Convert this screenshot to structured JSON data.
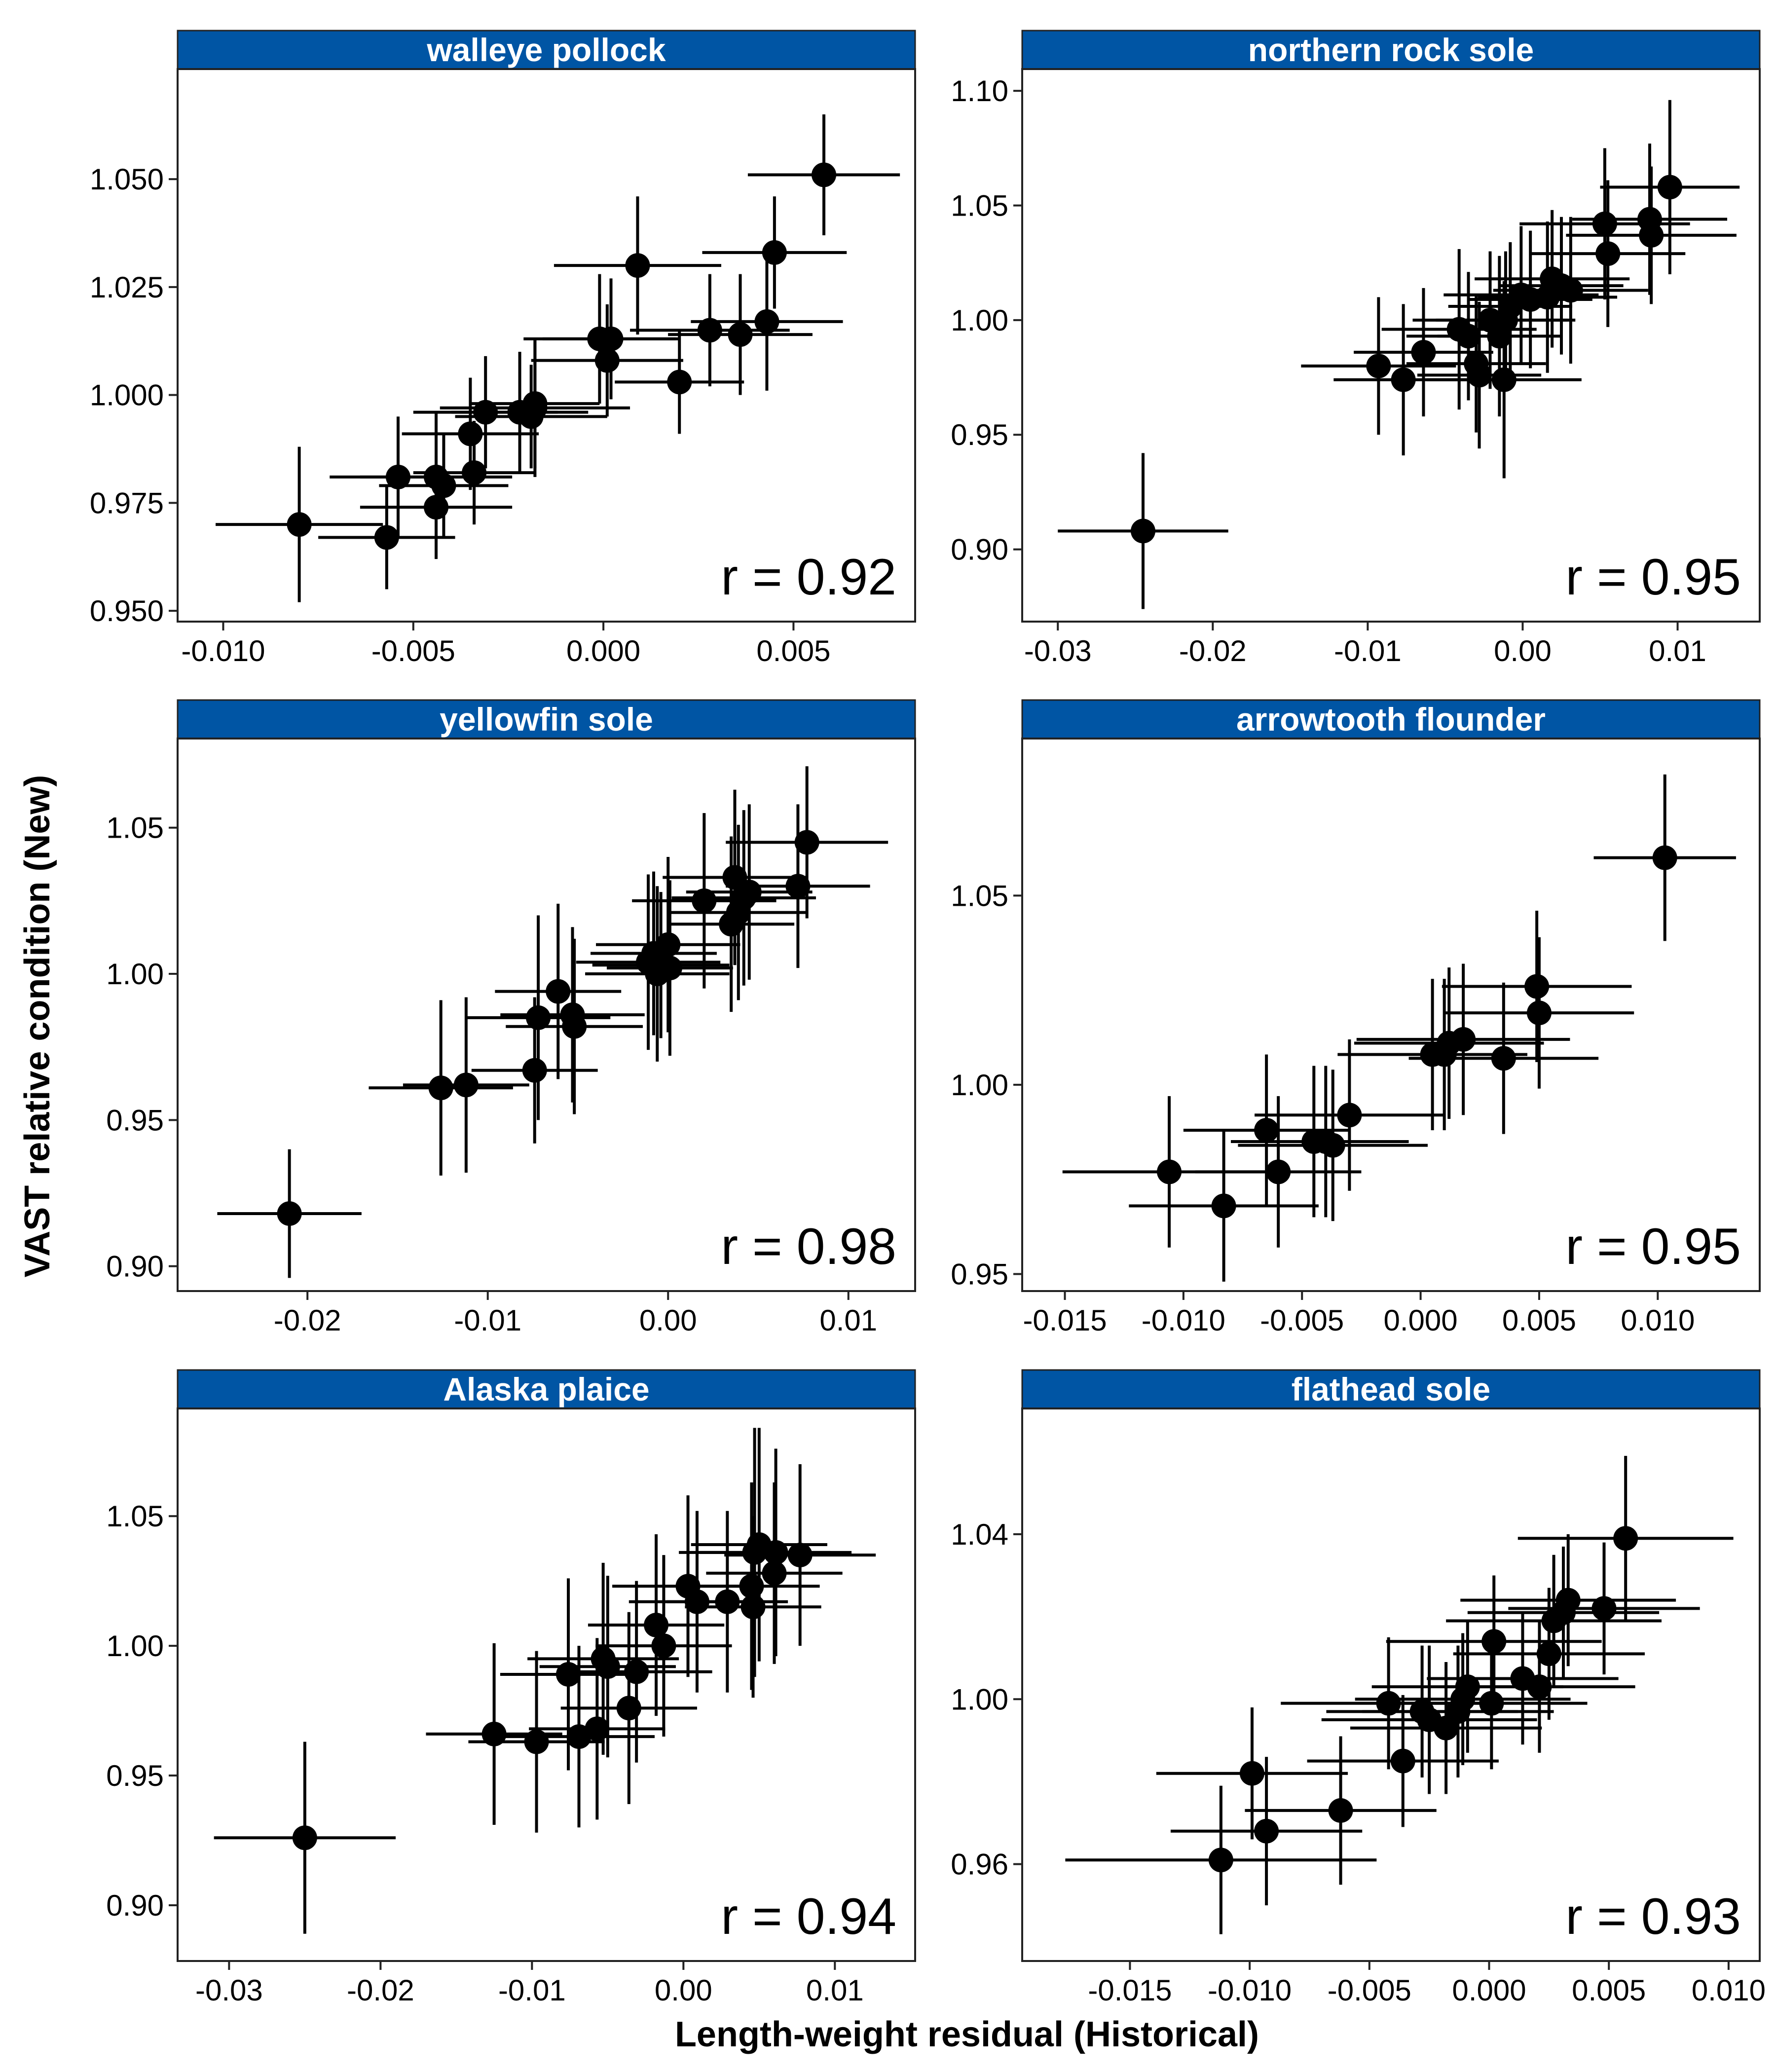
{
  "figure": {
    "xlabel": "Length-weight residual (Historical)",
    "ylabel": "VAST relative condition (New)",
    "strip_color": "#0055A4",
    "point_color": "#000000"
  },
  "chart_data": [
    {
      "type": "scatter",
      "title": "walleye pollock",
      "annotation": "r = 0.92",
      "xlim": [
        -0.0112,
        0.0082
      ],
      "ylim": [
        0.9475,
        1.0755
      ],
      "xticks": [
        -0.01,
        -0.005,
        0.0,
        0.005
      ],
      "xtick_labels": [
        "-0.010",
        "-0.005",
        "0.000",
        "0.005"
      ],
      "yticks": [
        0.95,
        0.975,
        1.0,
        1.025,
        1.05
      ],
      "ytick_labels": [
        "0.950",
        "0.975",
        "1.000",
        "1.025",
        "1.050"
      ],
      "points": [
        {
          "x": -0.008,
          "y": 0.97,
          "xerr": 0.0022,
          "yerr": 0.018
        },
        {
          "x": -0.0057,
          "y": 0.967,
          "xerr": 0.0018,
          "yerr": 0.012
        },
        {
          "x": -0.0054,
          "y": 0.981,
          "xerr": 0.0018,
          "yerr": 0.014
        },
        {
          "x": -0.0044,
          "y": 0.981,
          "xerr": 0.002,
          "yerr": 0.015
        },
        {
          "x": -0.0042,
          "y": 0.979,
          "xerr": 0.0017,
          "yerr": 0.012
        },
        {
          "x": -0.0044,
          "y": 0.974,
          "xerr": 0.002,
          "yerr": 0.012
        },
        {
          "x": -0.0035,
          "y": 0.991,
          "xerr": 0.0018,
          "yerr": 0.013
        },
        {
          "x": -0.0034,
          "y": 0.982,
          "xerr": 0.0016,
          "yerr": 0.012
        },
        {
          "x": -0.0031,
          "y": 0.996,
          "xerr": 0.0019,
          "yerr": 0.013
        },
        {
          "x": -0.0022,
          "y": 0.996,
          "xerr": 0.0018,
          "yerr": 0.014
        },
        {
          "x": -0.0019,
          "y": 0.995,
          "xerr": 0.002,
          "yerr": 0.012
        },
        {
          "x": -0.0018,
          "y": 0.997,
          "xerr": 0.0025,
          "yerr": 0.016
        },
        {
          "x": -0.0018,
          "y": 0.998,
          "xerr": 0.0017,
          "yerr": 0.015
        },
        {
          "x": -0.0001,
          "y": 1.013,
          "xerr": 0.002,
          "yerr": 0.015
        },
        {
          "x": 0.0001,
          "y": 1.008,
          "xerr": 0.002,
          "yerr": 0.013
        },
        {
          "x": 0.0002,
          "y": 1.013,
          "xerr": 0.0018,
          "yerr": 0.014
        },
        {
          "x": 0.0009,
          "y": 1.03,
          "xerr": 0.0022,
          "yerr": 0.016
        },
        {
          "x": 0.002,
          "y": 1.003,
          "xerr": 0.0017,
          "yerr": 0.012
        },
        {
          "x": 0.0028,
          "y": 1.015,
          "xerr": 0.0021,
          "yerr": 0.013
        },
        {
          "x": 0.0036,
          "y": 1.014,
          "xerr": 0.0019,
          "yerr": 0.014
        },
        {
          "x": 0.0043,
          "y": 1.017,
          "xerr": 0.002,
          "yerr": 0.016
        },
        {
          "x": 0.0045,
          "y": 1.033,
          "xerr": 0.0019,
          "yerr": 0.013
        },
        {
          "x": 0.0058,
          "y": 1.051,
          "xerr": 0.002,
          "yerr": 0.014
        }
      ]
    },
    {
      "type": "scatter",
      "title": "northern rock sole",
      "annotation": "r = 0.95",
      "xlim": [
        -0.0323,
        0.0153
      ],
      "ylim": [
        0.8685,
        1.1095
      ],
      "xticks": [
        -0.03,
        -0.02,
        -0.01,
        0.0,
        0.01
      ],
      "xtick_labels": [
        "-0.03",
        "-0.02",
        "-0.01",
        "0.00",
        "0.01"
      ],
      "yticks": [
        0.9,
        0.95,
        1.0,
        1.05,
        1.1
      ],
      "ytick_labels": [
        "0.90",
        "0.95",
        "1.00",
        "1.05",
        "1.10"
      ],
      "points": [
        {
          "x": -0.0245,
          "y": 0.908,
          "xerr": 0.0055,
          "yerr": 0.034
        },
        {
          "x": -0.0093,
          "y": 0.98,
          "xerr": 0.005,
          "yerr": 0.03
        },
        {
          "x": -0.0077,
          "y": 0.974,
          "xerr": 0.0045,
          "yerr": 0.033
        },
        {
          "x": -0.0064,
          "y": 0.986,
          "xerr": 0.0045,
          "yerr": 0.028
        },
        {
          "x": -0.0041,
          "y": 0.996,
          "xerr": 0.005,
          "yerr": 0.035
        },
        {
          "x": -0.0035,
          "y": 0.993,
          "xerr": 0.004,
          "yerr": 0.028
        },
        {
          "x": -0.003,
          "y": 0.981,
          "xerr": 0.0045,
          "yerr": 0.03
        },
        {
          "x": -0.0028,
          "y": 0.976,
          "xerr": 0.004,
          "yerr": 0.032
        },
        {
          "x": -0.0021,
          "y": 1.0,
          "xerr": 0.005,
          "yerr": 0.03
        },
        {
          "x": -0.0015,
          "y": 0.993,
          "xerr": 0.004,
          "yerr": 0.035
        },
        {
          "x": -0.0012,
          "y": 0.974,
          "xerr": 0.005,
          "yerr": 0.043
        },
        {
          "x": -0.0011,
          "y": 1.0,
          "xerr": 0.0045,
          "yerr": 0.03
        },
        {
          "x": -0.0008,
          "y": 1.006,
          "xerr": 0.004,
          "yerr": 0.028
        },
        {
          "x": -0.0001,
          "y": 1.011,
          "xerr": 0.005,
          "yerr": 0.03
        },
        {
          "x": 0.0005,
          "y": 1.009,
          "xerr": 0.004,
          "yerr": 0.03
        },
        {
          "x": 0.0016,
          "y": 1.01,
          "xerr": 0.0045,
          "yerr": 0.033
        },
        {
          "x": 0.0019,
          "y": 1.018,
          "xerr": 0.005,
          "yerr": 0.03
        },
        {
          "x": 0.0025,
          "y": 1.015,
          "xerr": 0.004,
          "yerr": 0.03
        },
        {
          "x": 0.0031,
          "y": 1.013,
          "xerr": 0.005,
          "yerr": 0.032
        },
        {
          "x": 0.0053,
          "y": 1.042,
          "xerr": 0.0055,
          "yerr": 0.033
        },
        {
          "x": 0.0055,
          "y": 1.029,
          "xerr": 0.005,
          "yerr": 0.032
        },
        {
          "x": 0.0082,
          "y": 1.044,
          "xerr": 0.005,
          "yerr": 0.033
        },
        {
          "x": 0.0083,
          "y": 1.037,
          "xerr": 0.0055,
          "yerr": 0.03
        },
        {
          "x": 0.0095,
          "y": 1.058,
          "xerr": 0.0045,
          "yerr": 0.038
        }
      ]
    },
    {
      "type": "scatter",
      "title": "yellowfin sole",
      "annotation": "r = 0.98",
      "xlim": [
        -0.0272,
        0.0137
      ],
      "ylim": [
        0.8915,
        1.0805
      ],
      "xticks": [
        -0.02,
        -0.01,
        0.0,
        0.01
      ],
      "xtick_labels": [
        "-0.02",
        "-0.01",
        "0.00",
        "0.01"
      ],
      "yticks": [
        0.9,
        0.95,
        1.0,
        1.05
      ],
      "ytick_labels": [
        "0.90",
        "0.95",
        "1.00",
        "1.05"
      ],
      "points": [
        {
          "x": -0.021,
          "y": 0.918,
          "xerr": 0.004,
          "yerr": 0.022
        },
        {
          "x": -0.0126,
          "y": 0.961,
          "xerr": 0.004,
          "yerr": 0.03
        },
        {
          "x": -0.0112,
          "y": 0.962,
          "xerr": 0.0035,
          "yerr": 0.03
        },
        {
          "x": -0.0074,
          "y": 0.967,
          "xerr": 0.0035,
          "yerr": 0.025
        },
        {
          "x": -0.0072,
          "y": 0.985,
          "xerr": 0.004,
          "yerr": 0.035
        },
        {
          "x": -0.0061,
          "y": 0.994,
          "xerr": 0.0035,
          "yerr": 0.03
        },
        {
          "x": -0.0053,
          "y": 0.986,
          "xerr": 0.004,
          "yerr": 0.03
        },
        {
          "x": -0.0052,
          "y": 0.982,
          "xerr": 0.0038,
          "yerr": 0.03
        },
        {
          "x": -0.0011,
          "y": 1.004,
          "xerr": 0.004,
          "yerr": 0.03
        },
        {
          "x": -0.0008,
          "y": 1.007,
          "xerr": 0.0035,
          "yerr": 0.028
        },
        {
          "x": -0.0006,
          "y": 1.0,
          "xerr": 0.004,
          "yerr": 0.03
        },
        {
          "x": -0.0004,
          "y": 1.003,
          "xerr": 0.0038,
          "yerr": 0.025
        },
        {
          "x": 0.0,
          "y": 1.01,
          "xerr": 0.004,
          "yerr": 0.03
        },
        {
          "x": 0.0001,
          "y": 1.002,
          "xerr": 0.0035,
          "yerr": 0.03
        },
        {
          "x": 0.002,
          "y": 1.025,
          "xerr": 0.004,
          "yerr": 0.03
        },
        {
          "x": 0.0035,
          "y": 1.017,
          "xerr": 0.0035,
          "yerr": 0.03
        },
        {
          "x": 0.0037,
          "y": 1.033,
          "xerr": 0.004,
          "yerr": 0.03
        },
        {
          "x": 0.0039,
          "y": 1.021,
          "xerr": 0.0038,
          "yerr": 0.03
        },
        {
          "x": 0.0042,
          "y": 1.026,
          "xerr": 0.004,
          "yerr": 0.03
        },
        {
          "x": 0.0045,
          "y": 1.028,
          "xerr": 0.0035,
          "yerr": 0.03
        },
        {
          "x": 0.0072,
          "y": 1.03,
          "xerr": 0.004,
          "yerr": 0.028
        },
        {
          "x": 0.0077,
          "y": 1.045,
          "xerr": 0.0045,
          "yerr": 0.026
        }
      ]
    },
    {
      "type": "scatter",
      "title": "arrowtooth flounder",
      "annotation": "r = 0.95",
      "xlim": [
        -0.0168,
        0.0143
      ],
      "ylim": [
        0.9455,
        1.0915
      ],
      "xticks": [
        -0.015,
        -0.01,
        -0.005,
        0.0,
        0.005,
        0.01
      ],
      "xtick_labels": [
        "-0.015",
        "-0.010",
        "-0.005",
        "0.000",
        "0.005",
        "0.010"
      ],
      "yticks": [
        0.95,
        1.0,
        1.05
      ],
      "ytick_labels": [
        "0.95",
        "1.00",
        "1.05"
      ],
      "points": [
        {
          "x": -0.0106,
          "y": 0.977,
          "xerr": 0.0045,
          "yerr": 0.02
        },
        {
          "x": -0.0083,
          "y": 0.968,
          "xerr": 0.004,
          "yerr": 0.02
        },
        {
          "x": -0.0065,
          "y": 0.988,
          "xerr": 0.0035,
          "yerr": 0.02
        },
        {
          "x": -0.006,
          "y": 0.977,
          "xerr": 0.0035,
          "yerr": 0.02
        },
        {
          "x": -0.0045,
          "y": 0.985,
          "xerr": 0.0035,
          "yerr": 0.02
        },
        {
          "x": -0.004,
          "y": 0.985,
          "xerr": 0.0035,
          "yerr": 0.02
        },
        {
          "x": -0.0037,
          "y": 0.984,
          "xerr": 0.004,
          "yerr": 0.02
        },
        {
          "x": -0.003,
          "y": 0.992,
          "xerr": 0.004,
          "yerr": 0.02
        },
        {
          "x": 0.0005,
          "y": 1.008,
          "xerr": 0.004,
          "yerr": 0.02
        },
        {
          "x": 0.001,
          "y": 1.008,
          "xerr": 0.0035,
          "yerr": 0.02
        },
        {
          "x": 0.0012,
          "y": 1.011,
          "xerr": 0.004,
          "yerr": 0.02
        },
        {
          "x": 0.0018,
          "y": 1.012,
          "xerr": 0.0045,
          "yerr": 0.02
        },
        {
          "x": 0.0035,
          "y": 1.007,
          "xerr": 0.004,
          "yerr": 0.02
        },
        {
          "x": 0.0049,
          "y": 1.026,
          "xerr": 0.004,
          "yerr": 0.02
        },
        {
          "x": 0.005,
          "y": 1.019,
          "xerr": 0.004,
          "yerr": 0.02
        },
        {
          "x": 0.0103,
          "y": 1.06,
          "xerr": 0.003,
          "yerr": 0.022
        }
      ]
    },
    {
      "type": "scatter",
      "title": "Alaska plaice",
      "annotation": "r = 0.94",
      "xlim": [
        -0.0334,
        0.0153
      ],
      "ylim": [
        0.8785,
        1.0915
      ],
      "xticks": [
        -0.03,
        -0.02,
        -0.01,
        0.0,
        0.01
      ],
      "xtick_labels": [
        "-0.03",
        "-0.02",
        "-0.01",
        "0.00",
        "0.01"
      ],
      "yticks": [
        0.9,
        0.95,
        1.0,
        1.05
      ],
      "ytick_labels": [
        "0.90",
        "0.95",
        "1.00",
        "1.05"
      ],
      "points": [
        {
          "x": -0.025,
          "y": 0.926,
          "xerr": 0.006,
          "yerr": 0.037
        },
        {
          "x": -0.0125,
          "y": 0.966,
          "xerr": 0.0045,
          "yerr": 0.035
        },
        {
          "x": -0.0097,
          "y": 0.963,
          "xerr": 0.0045,
          "yerr": 0.035
        },
        {
          "x": -0.0076,
          "y": 0.989,
          "xerr": 0.0045,
          "yerr": 0.037
        },
        {
          "x": -0.0069,
          "y": 0.965,
          "xerr": 0.005,
          "yerr": 0.035
        },
        {
          "x": -0.0057,
          "y": 0.968,
          "xerr": 0.0045,
          "yerr": 0.035
        },
        {
          "x": -0.0053,
          "y": 0.995,
          "xerr": 0.005,
          "yerr": 0.037
        },
        {
          "x": -0.005,
          "y": 0.992,
          "xerr": 0.0045,
          "yerr": 0.035
        },
        {
          "x": -0.0036,
          "y": 0.976,
          "xerr": 0.0045,
          "yerr": 0.037
        },
        {
          "x": -0.0031,
          "y": 0.99,
          "xerr": 0.005,
          "yerr": 0.035
        },
        {
          "x": -0.0018,
          "y": 1.008,
          "xerr": 0.0045,
          "yerr": 0.035
        },
        {
          "x": -0.0013,
          "y": 1.0,
          "xerr": 0.0045,
          "yerr": 0.035
        },
        {
          "x": 0.0003,
          "y": 1.023,
          "xerr": 0.005,
          "yerr": 0.035
        },
        {
          "x": 0.0009,
          "y": 1.017,
          "xerr": 0.0045,
          "yerr": 0.035
        },
        {
          "x": 0.0029,
          "y": 1.017,
          "xerr": 0.004,
          "yerr": 0.035
        },
        {
          "x": 0.0045,
          "y": 1.023,
          "xerr": 0.0045,
          "yerr": 0.04
        },
        {
          "x": 0.0046,
          "y": 1.015,
          "xerr": 0.0045,
          "yerr": 0.035
        },
        {
          "x": 0.0047,
          "y": 1.036,
          "xerr": 0.005,
          "yerr": 0.048
        },
        {
          "x": 0.005,
          "y": 1.039,
          "xerr": 0.0045,
          "yerr": 0.045
        },
        {
          "x": 0.006,
          "y": 1.028,
          "xerr": 0.0045,
          "yerr": 0.035
        },
        {
          "x": 0.0061,
          "y": 1.036,
          "xerr": 0.005,
          "yerr": 0.04
        },
        {
          "x": 0.0077,
          "y": 1.035,
          "xerr": 0.005,
          "yerr": 0.035
        }
      ]
    },
    {
      "type": "scatter",
      "title": "flathead sole",
      "annotation": "r = 0.93",
      "xlim": [
        -0.0195,
        0.0113
      ],
      "ylim": [
        0.9365,
        1.0705
      ],
      "xticks": [
        -0.015,
        -0.01,
        -0.005,
        0.0,
        0.005,
        0.01
      ],
      "xtick_labels": [
        "-0.015",
        "-0.010",
        "-0.005",
        "0.000",
        "0.005",
        "0.010"
      ],
      "yticks": [
        0.96,
        1.0,
        1.04
      ],
      "ytick_labels": [
        "0.96",
        "1.00",
        "1.04"
      ],
      "points": [
        {
          "x": -0.0112,
          "y": 0.961,
          "xerr": 0.0065,
          "yerr": 0.018
        },
        {
          "x": -0.0099,
          "y": 0.982,
          "xerr": 0.004,
          "yerr": 0.016
        },
        {
          "x": -0.0093,
          "y": 0.968,
          "xerr": 0.004,
          "yerr": 0.018
        },
        {
          "x": -0.0062,
          "y": 0.973,
          "xerr": 0.004,
          "yerr": 0.018
        },
        {
          "x": -0.0042,
          "y": 0.999,
          "xerr": 0.0045,
          "yerr": 0.016
        },
        {
          "x": -0.0036,
          "y": 0.985,
          "xerr": 0.004,
          "yerr": 0.016
        },
        {
          "x": -0.0028,
          "y": 0.997,
          "xerr": 0.004,
          "yerr": 0.016
        },
        {
          "x": -0.0025,
          "y": 0.995,
          "xerr": 0.0045,
          "yerr": 0.018
        },
        {
          "x": -0.0018,
          "y": 0.993,
          "xerr": 0.004,
          "yerr": 0.016
        },
        {
          "x": -0.0013,
          "y": 0.997,
          "xerr": 0.004,
          "yerr": 0.016
        },
        {
          "x": -0.0011,
          "y": 1.0,
          "xerr": 0.0045,
          "yerr": 0.016
        },
        {
          "x": -0.0009,
          "y": 1.003,
          "xerr": 0.004,
          "yerr": 0.016
        },
        {
          "x": 0.0001,
          "y": 0.999,
          "xerr": 0.004,
          "yerr": 0.016
        },
        {
          "x": 0.0002,
          "y": 1.014,
          "xerr": 0.0045,
          "yerr": 0.016
        },
        {
          "x": 0.0014,
          "y": 1.005,
          "xerr": 0.004,
          "yerr": 0.016
        },
        {
          "x": 0.0021,
          "y": 1.003,
          "xerr": 0.004,
          "yerr": 0.016
        },
        {
          "x": 0.0025,
          "y": 1.011,
          "xerr": 0.004,
          "yerr": 0.016
        },
        {
          "x": 0.0027,
          "y": 1.019,
          "xerr": 0.0045,
          "yerr": 0.016
        },
        {
          "x": 0.0031,
          "y": 1.021,
          "xerr": 0.004,
          "yerr": 0.016
        },
        {
          "x": 0.0033,
          "y": 1.024,
          "xerr": 0.0045,
          "yerr": 0.016
        },
        {
          "x": 0.0048,
          "y": 1.022,
          "xerr": 0.004,
          "yerr": 0.016
        },
        {
          "x": 0.0057,
          "y": 1.039,
          "xerr": 0.0045,
          "yerr": 0.02
        }
      ]
    }
  ]
}
